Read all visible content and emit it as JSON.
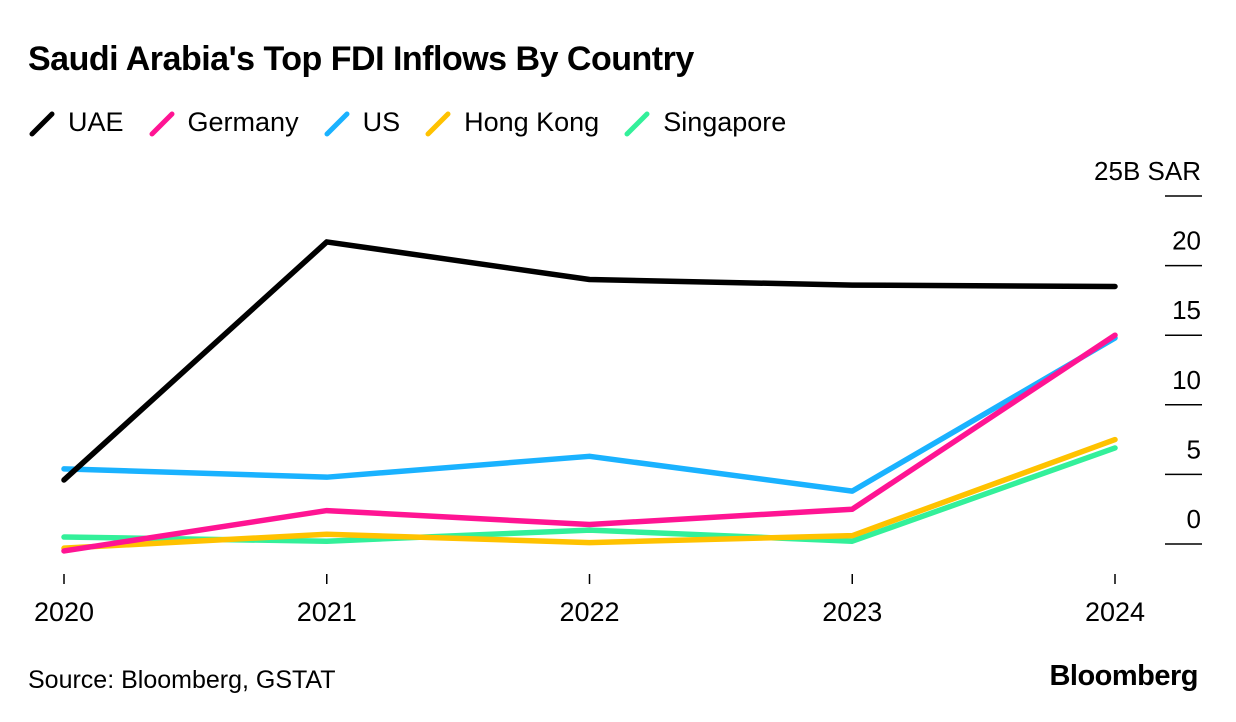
{
  "title": "Saudi Arabia's Top FDI Inflows By Country",
  "source": "Source: Bloomberg, GSTAT",
  "brand": "Bloomberg",
  "chart_data": {
    "type": "line",
    "title": "Saudi Arabia's Top FDI Inflows By Country",
    "x": [
      "2020",
      "2021",
      "2022",
      "2023",
      "2024"
    ],
    "unit_label": "25B SAR",
    "ylim": [
      -2,
      25
    ],
    "y_ticks": [
      0,
      5,
      10,
      15,
      20,
      25
    ],
    "y_tick_labels": [
      "0",
      "5",
      "10",
      "15",
      "20",
      "25B SAR"
    ],
    "axis_side": "right",
    "grid": false,
    "legend_position": "top-left",
    "series": [
      {
        "name": "UAE",
        "color": "#000000",
        "values": [
          4.6,
          21.7,
          19.0,
          18.6,
          18.5
        ]
      },
      {
        "name": "Germany",
        "color": "#ff1493",
        "values": [
          -0.5,
          2.4,
          1.4,
          2.5,
          15.0
        ]
      },
      {
        "name": "US",
        "color": "#1ab2ff",
        "values": [
          5.4,
          4.8,
          6.3,
          3.8,
          14.8
        ]
      },
      {
        "name": "Hong Kong",
        "color": "#ffc200",
        "values": [
          -0.3,
          0.7,
          0.1,
          0.6,
          7.5
        ]
      },
      {
        "name": "Singapore",
        "color": "#33f09a",
        "values": [
          0.5,
          0.2,
          1.0,
          0.2,
          6.9
        ]
      }
    ]
  }
}
